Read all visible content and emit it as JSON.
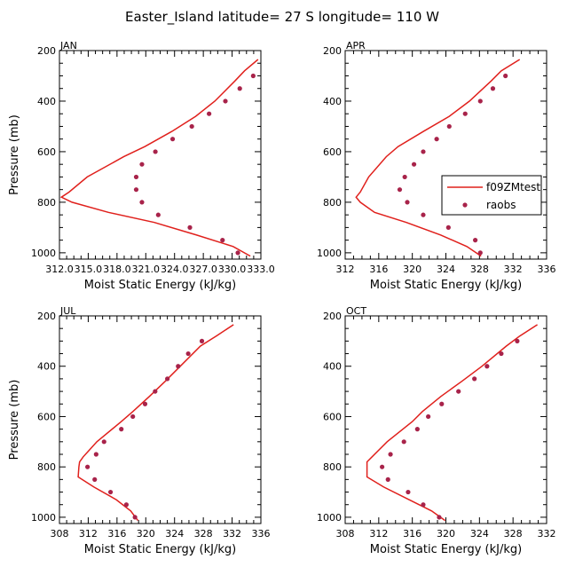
{
  "figure_title": "Easter_Island   latitude= 27 S longitude= 110 W",
  "legend": {
    "model_label": "f09ZMtest",
    "obs_label": "raobs"
  },
  "colors": {
    "model": "#e0201c",
    "obs": "#a8234a",
    "axis": "#000000"
  },
  "chart_data": [
    {
      "type": "line",
      "title": "JAN",
      "xlabel": "Moist Static Energy (kJ/kg)",
      "ylabel": "Pressure (mb)",
      "xlim": [
        312.0,
        333.0
      ],
      "xticks": [
        312.0,
        315.0,
        318.0,
        321.0,
        324.0,
        327.0,
        330.0,
        333.0
      ],
      "xticklabels": [
        "312.0",
        "315.0",
        "318.0",
        "321.0",
        "324.0",
        "327.0",
        "330.0",
        "333.0"
      ],
      "ylim": [
        1025,
        200
      ],
      "yticks": [
        200,
        400,
        600,
        800,
        1000
      ],
      "show_legend": false,
      "series": [
        {
          "name": "f09ZMtest",
          "kind": "line",
          "pressure": [
            235,
            280,
            320,
            400,
            460,
            520,
            580,
            620,
            700,
            760,
            780,
            800,
            840,
            880,
            930,
            975,
            1013
          ],
          "x": [
            332.7,
            331.3,
            330.3,
            328.2,
            326.2,
            323.7,
            320.9,
            318.7,
            314.9,
            313.0,
            312.2,
            313.3,
            317.1,
            321.9,
            326.3,
            330.1,
            331.9
          ]
        },
        {
          "name": "raobs",
          "kind": "points",
          "pressure": [
            300,
            350,
            400,
            450,
            500,
            550,
            600,
            650,
            700,
            750,
            800,
            850,
            900,
            950,
            1000
          ],
          "x": [
            332.2,
            330.8,
            329.3,
            327.6,
            325.8,
            323.8,
            322.0,
            320.6,
            320.0,
            320.0,
            320.6,
            322.3,
            325.6,
            329.0,
            330.6
          ]
        }
      ]
    },
    {
      "type": "line",
      "title": "APR",
      "xlabel": "Moist Static Energy (kJ/kg)",
      "ylabel": "Pressure (mb)",
      "xlim": [
        312,
        336
      ],
      "xticks": [
        312,
        316,
        320,
        324,
        328,
        332,
        336
      ],
      "xticklabels": [
        "312",
        "316",
        "320",
        "324",
        "328",
        "332",
        "336"
      ],
      "ylim": [
        1025,
        200
      ],
      "yticks": [
        200,
        400,
        600,
        800,
        1000
      ],
      "show_legend": true,
      "series": [
        {
          "name": "f09ZMtest",
          "kind": "line",
          "pressure": [
            235,
            280,
            320,
            400,
            460,
            520,
            580,
            620,
            700,
            760,
            780,
            800,
            840,
            880,
            930,
            975,
            1013
          ],
          "x": [
            332.8,
            330.6,
            329.4,
            326.8,
            324.4,
            321.3,
            318.3,
            316.9,
            314.8,
            313.8,
            313.3,
            313.8,
            315.5,
            319.3,
            323.4,
            326.5,
            328.2
          ]
        },
        {
          "name": "raobs",
          "kind": "points",
          "pressure": [
            300,
            350,
            400,
            450,
            500,
            550,
            600,
            650,
            700,
            750,
            800,
            850,
            900,
            950,
            1000
          ],
          "x": [
            331.1,
            329.6,
            328.1,
            326.3,
            324.4,
            322.9,
            321.3,
            320.2,
            319.1,
            318.5,
            319.4,
            321.3,
            324.3,
            327.5,
            328.1
          ]
        }
      ]
    },
    {
      "type": "line",
      "title": "JUL",
      "xlabel": "Moist Static Energy (kJ/kg)",
      "ylabel": "Pressure (mb)",
      "xlim": [
        308,
        336
      ],
      "xticks": [
        308,
        312,
        316,
        320,
        324,
        328,
        332,
        336
      ],
      "xticklabels": [
        "308",
        "312",
        "316",
        "320",
        "324",
        "328",
        "332",
        "336"
      ],
      "ylim": [
        1025,
        200
      ],
      "yticks": [
        200,
        400,
        600,
        800,
        1000
      ],
      "show_legend": false,
      "series": [
        {
          "name": "f09ZMtest",
          "kind": "line",
          "pressure": [
            235,
            280,
            320,
            400,
            460,
            520,
            580,
            620,
            700,
            760,
            780,
            800,
            840,
            880,
            930,
            975,
            1013
          ],
          "x": [
            332.2,
            329.8,
            327.6,
            324.8,
            322.7,
            320.5,
            318.2,
            316.6,
            313.2,
            311.3,
            310.8,
            310.7,
            310.6,
            312.8,
            315.9,
            317.9,
            318.9
          ]
        },
        {
          "name": "raobs",
          "kind": "points",
          "pressure": [
            300,
            350,
            400,
            450,
            500,
            550,
            600,
            650,
            700,
            750,
            800,
            850,
            900,
            950,
            1000
          ],
          "x": [
            327.8,
            325.9,
            324.5,
            323.0,
            321.3,
            319.9,
            318.2,
            316.6,
            314.2,
            313.1,
            311.9,
            312.9,
            315.1,
            317.3,
            318.5
          ]
        }
      ]
    },
    {
      "type": "line",
      "title": "OCT",
      "xlabel": "Moist Static Energy (kJ/kg)",
      "ylabel": "Pressure (mb)",
      "xlim": [
        308,
        332
      ],
      "xticks": [
        308,
        312,
        316,
        320,
        324,
        328,
        332
      ],
      "xticklabels": [
        "308",
        "312",
        "316",
        "320",
        "324",
        "328",
        "332"
      ],
      "ylim": [
        1025,
        200
      ],
      "yticks": [
        200,
        400,
        600,
        800,
        1000
      ],
      "show_legend": false,
      "series": [
        {
          "name": "f09ZMtest",
          "kind": "line",
          "pressure": [
            235,
            280,
            320,
            400,
            460,
            520,
            580,
            620,
            700,
            760,
            780,
            800,
            840,
            880,
            930,
            975,
            1013
          ],
          "x": [
            330.9,
            328.8,
            327.2,
            324.3,
            321.9,
            319.4,
            317.2,
            316.0,
            313.0,
            311.2,
            310.6,
            310.6,
            310.6,
            312.6,
            315.6,
            318.3,
            319.9
          ]
        },
        {
          "name": "raobs",
          "kind": "points",
          "pressure": [
            300,
            350,
            400,
            450,
            500,
            550,
            600,
            650,
            700,
            750,
            800,
            850,
            900,
            950,
            1000
          ],
          "x": [
            328.5,
            326.6,
            324.9,
            323.4,
            321.5,
            319.5,
            317.9,
            316.6,
            315.0,
            313.4,
            312.4,
            313.1,
            315.5,
            317.3,
            319.2
          ]
        }
      ]
    }
  ]
}
